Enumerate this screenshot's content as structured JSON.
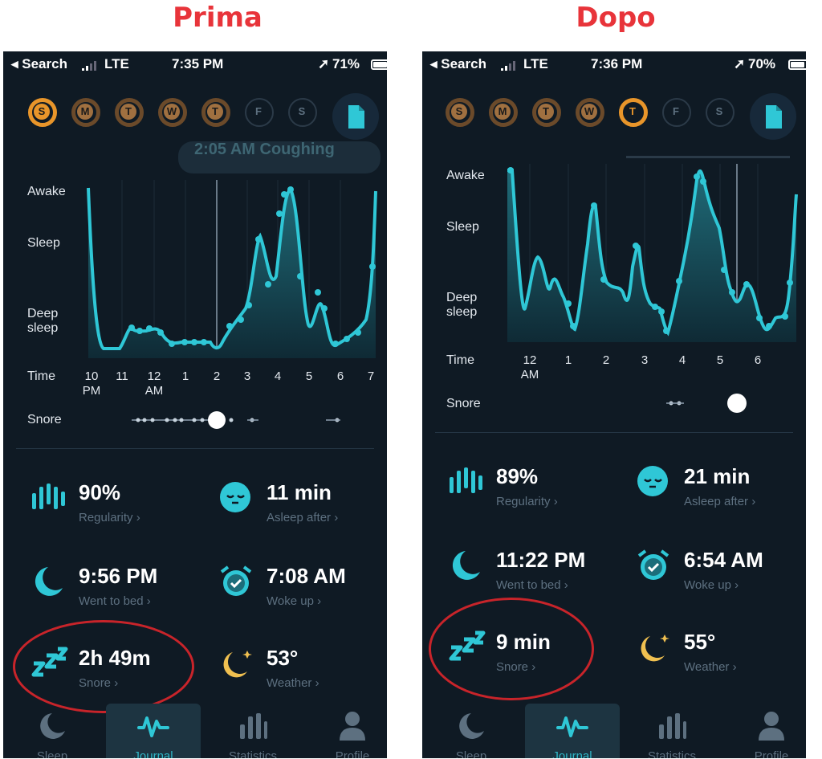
{
  "colors": {
    "heading_red": "#e8343a",
    "accent_teal": "#2fc7d6",
    "orange": "#e8952a",
    "circle_red": "#c8242a"
  },
  "panels": [
    {
      "heading": "Prima",
      "status": {
        "carrier": "◂ Search",
        "network": "LTE",
        "time": "7:35 PM",
        "battery": "71%",
        "battery_fill": 0.71
      },
      "days": [
        "S",
        "M",
        "T",
        "W",
        "T",
        "F",
        "S"
      ],
      "banner_text": "2:05 AM Coughing",
      "chart": {
        "y_labels": [
          "Awake",
          "Sleep",
          "Deep sleep"
        ],
        "time_label": "Time",
        "x_ticks": [
          "10 PM",
          "11",
          "12 AM",
          "1",
          "2",
          "3",
          "4",
          "5",
          "6",
          "7"
        ],
        "snore_label": "Snore"
      },
      "stats": [
        {
          "value": "90%",
          "label": "Regularity ›"
        },
        {
          "value": "11 min",
          "label": "Asleep after ›"
        },
        {
          "value": "9:56 PM",
          "label": "Went to bed ›"
        },
        {
          "value": "7:08 AM",
          "label": "Woke up ›"
        },
        {
          "value": "2h 49m",
          "label": "Snore ›"
        },
        {
          "value": "53°",
          "label": "Weather ›"
        }
      ],
      "tabs": [
        "Sleep",
        "Journal",
        "Statistics",
        "Profile"
      ]
    },
    {
      "heading": "Dopo",
      "status": {
        "carrier": "◂ Search",
        "network": "LTE",
        "time": "7:36 PM",
        "battery": "70%",
        "battery_fill": 0.7
      },
      "days": [
        "S",
        "M",
        "T",
        "W",
        "T",
        "F",
        "S"
      ],
      "chart": {
        "y_labels": [
          "Awake",
          "Sleep",
          "Deep sleep"
        ],
        "time_label": "Time",
        "x_ticks": [
          "12 AM",
          "1",
          "2",
          "3",
          "4",
          "5",
          "6"
        ],
        "snore_label": "Snore"
      },
      "stats": [
        {
          "value": "89%",
          "label": "Regularity ›"
        },
        {
          "value": "21 min",
          "label": "Asleep after ›"
        },
        {
          "value": "11:22 PM",
          "label": "Went to bed ›"
        },
        {
          "value": "6:54 AM",
          "label": "Woke up ›"
        },
        {
          "value": "9 min",
          "label": "Snore ›"
        },
        {
          "value": "55°",
          "label": "Weather ›"
        }
      ],
      "tabs": [
        "Sleep",
        "Journal",
        "Statistics",
        "Profile"
      ]
    }
  ]
}
